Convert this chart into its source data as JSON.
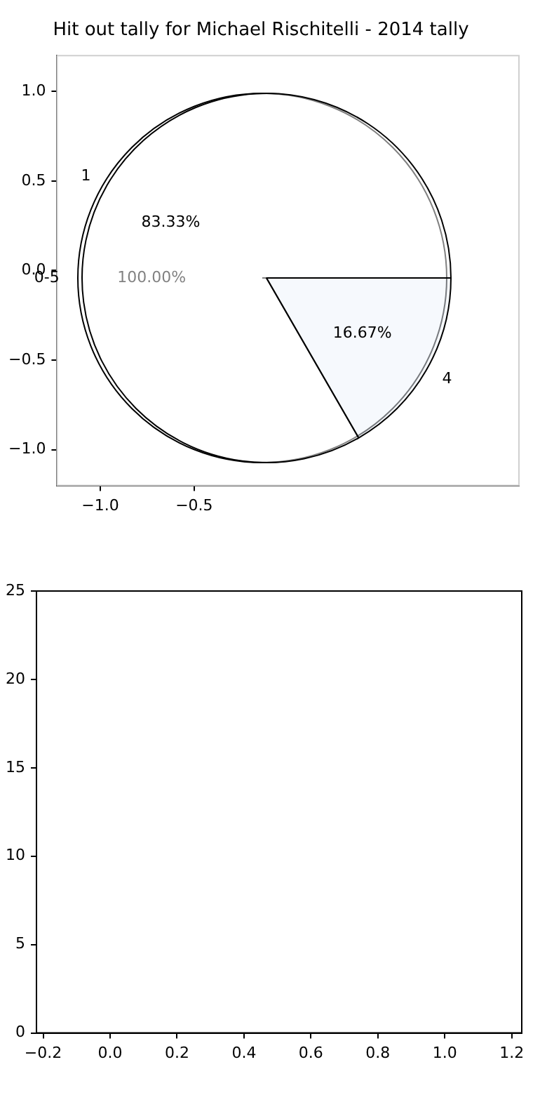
{
  "chart_data": [
    {
      "type": "scatter",
      "title": "Hit out tally for Michael Rischitelli - 2014 tally",
      "xlim": [
        -1.23,
        1.23
      ],
      "ylim": [
        -1.2,
        1.2
      ],
      "xticks": [
        {
          "value": -1,
          "label": "−1.0"
        },
        {
          "value": -0.5,
          "label": "−0.5"
        }
      ],
      "yticks": [
        {
          "value": -1,
          "label": "−1.0"
        },
        {
          "value": -0.5,
          "label": "−0.5"
        },
        {
          "value": 0,
          "label": "0.0"
        },
        {
          "value": 0.5,
          "label": "0.5"
        },
        {
          "value": 1,
          "label": "1.0"
        }
      ]
    },
    {
      "type": "pie",
      "categories": [
        "1",
        "4"
      ],
      "values": [
        83.33,
        16.67
      ],
      "colors": [
        "#ffffff",
        "#eef3fc"
      ],
      "value_labels": [
        "83.33%",
        "16.67%"
      ]
    },
    {
      "type": "pie",
      "categories": [
        "0-5"
      ],
      "values": [
        100
      ],
      "colors": [
        "#ffffff"
      ],
      "value_labels": [
        "100.00%"
      ]
    },
    {
      "type": "scatter",
      "xlim": [
        -0.22,
        1.23
      ],
      "ylim": [
        0,
        25
      ],
      "xticks": [
        {
          "value": -0.2,
          "label": "−0.2"
        },
        {
          "value": 0,
          "label": "0.0"
        },
        {
          "value": 0.2,
          "label": "0.2"
        },
        {
          "value": 0.4,
          "label": "0.4"
        },
        {
          "value": 0.6,
          "label": "0.6"
        },
        {
          "value": 0.8,
          "label": "0.8"
        },
        {
          "value": 1,
          "label": "1.0"
        },
        {
          "value": 1.2,
          "label": "1.2"
        }
      ],
      "yticks": [
        0,
        5,
        10,
        15,
        20,
        25
      ]
    }
  ]
}
